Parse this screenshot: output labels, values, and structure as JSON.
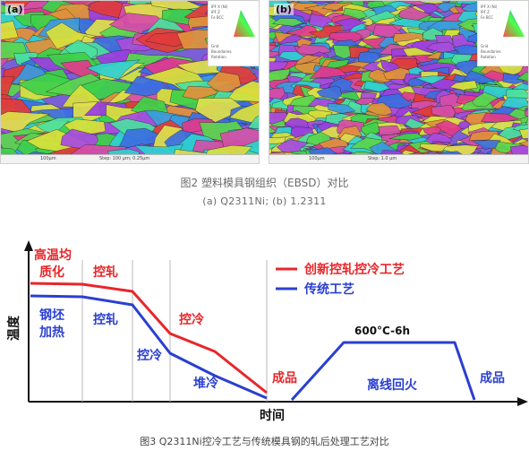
{
  "figure2": {
    "panel_a_tag": "(a)",
    "panel_b_tag": "(b)",
    "scale_a_left": "100μm",
    "scale_a_mid": "Step: 100 μm; 0.25μm",
    "scale_b_left": "100μm",
    "scale_b_mid": "Step: 1.0 μm",
    "legend_lines": [
      "IPF X (Ni)",
      "IPF Z",
      "Fe BCC",
      "Grid",
      "Boundaries",
      "Rotation"
    ],
    "caption": "图2 塑料模具钢组织（EBSD）对比",
    "subcaption": "(a) Q2311Ni; (b) 1.2311"
  },
  "figure3": {
    "caption": "图3 Q2311Ni控冷工艺与传统模具钢的轧后处理工艺对比",
    "y_axis_label": "温度",
    "x_axis_label": "时间",
    "legend": [
      {
        "label": "创新控轧控冷工艺",
        "color": "#e8262a"
      },
      {
        "label": "传统工艺",
        "color": "#2a3fd1"
      }
    ],
    "labels": {
      "red_stage1": "高温均\n质化",
      "red_stage2": "控轧",
      "red_stage3": "控冷",
      "blue_stage1": "钢坯\n加热",
      "blue_stage2": "控轧",
      "blue_stage3": "控冷",
      "blue_stage4": "堆冷",
      "product1": "成品",
      "tempering": "600°C-6h",
      "offline": "离线回火",
      "product2": "成品"
    },
    "colors": {
      "red": "#e8262a",
      "blue": "#2a3fd1",
      "axis": "#111111",
      "divider": "#b8b8b8"
    }
  }
}
